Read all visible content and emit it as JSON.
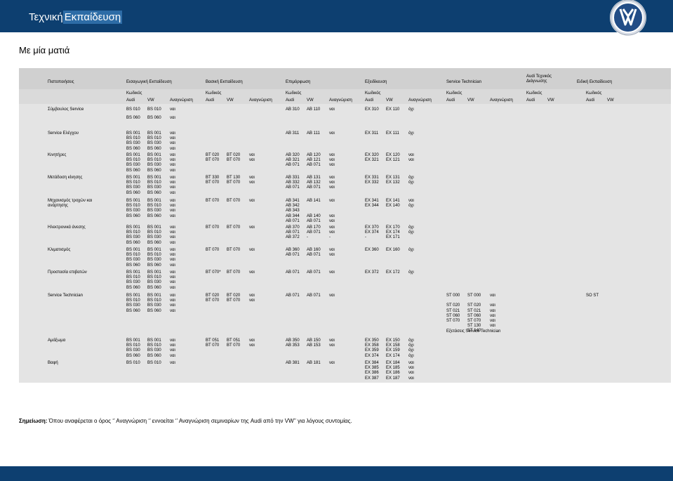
{
  "header": {
    "title_part1": "Τεχνική",
    "title_part2": "Εκπαίδευση",
    "logo": "vw-logo"
  },
  "subtitle": "Με μία ματιά",
  "table": {
    "col_headers": {
      "pistopoiiseis": "Πιστοποιήσεις",
      "eisagogiki": "Εισαγωγική Εκπαίδευση",
      "vasiki": "Βασική Εκπαίδευση",
      "epimorfosi": "Επιμόρφωση",
      "exeidikeusi": "Εξειδίκευση",
      "service_technician": "Service Technician",
      "audi_tech_diag": "Audi Τεχνικός\nΔιάγνωσης",
      "eidiki": "Ειδική Εκπαίδευση"
    },
    "sub_headers": {
      "kodikos": "Κωδικός",
      "audi": "Audi",
      "vw": "VW",
      "anagnorisi": "Αναγνώριση"
    },
    "rows": [
      {
        "label": "Σύμβουλος Service",
        "eis_audi": "BS 010",
        "eis_vw": "BS 010",
        "eis_an": "ναι",
        "vas_audi": "",
        "vas_vw": "",
        "vas_an": "",
        "epi_audi": "AB 310",
        "epi_vw": "AB 110",
        "epi_an": "ναι",
        "exe_audi": "EX 310",
        "exe_vw": "EX 110",
        "exe_an": "όχι"
      },
      {
        "label": "",
        "eis_audi": "BS 060",
        "eis_vw": "BS 060",
        "eis_an": "ναι",
        "vas_audi": "",
        "vas_vw": "",
        "vas_an": "",
        "epi_audi": "",
        "epi_vw": "",
        "epi_an": "",
        "exe_audi": "",
        "exe_vw": "",
        "exe_an": ""
      },
      {
        "label": "Service Ελέγχου",
        "eis_audi": "BS 001\nBS 010\nBS 030\nBS 060",
        "eis_vw": "BS 001\nBS 010\nBS 030\nBS 060",
        "eis_an": "ναι\nναι\nναι\nναι",
        "vas_audi": "",
        "vas_vw": "",
        "vas_an": "",
        "epi_audi": "AB 311",
        "epi_vw": "AB 111",
        "epi_an": "ναι",
        "exe_audi": "EX 311",
        "exe_vw": "EX 111",
        "exe_an": "όχι"
      },
      {
        "label": "Κινητήρες",
        "eis_audi": "BS 001\nBS 010\nBS 030\nBS 060",
        "eis_vw": "BS 001\nBS 010\nBS 030\nBS 060",
        "eis_an": "ναι\nναι\nναι\nναι",
        "vas_audi": "BT 020\nBT 070",
        "vas_vw": "BT 020\nBT 070",
        "vas_an": "ναι\nναι",
        "epi_audi": "AB 320\nAB 321\nAB 071",
        "epi_vw": "AB 120\nAB 121\nAB 071",
        "epi_an": "ναι\nναι\nναι",
        "exe_audi": "EX 320\nEX 321",
        "exe_vw": "EX 120\nEX 121",
        "exe_an": "ναι\nναι"
      },
      {
        "label": "Μετάδοση κίνησης",
        "eis_audi": "BS 001\nBS 010\nBS 030\nBS 060",
        "eis_vw": "BS 001\nBS 010\nBS 030\nBS 060",
        "eis_an": "ναι\nναι\nναι\nναι",
        "vas_audi": "BT 330\nBT 070",
        "vas_vw": "BT 130\nBT 070",
        "vas_an": "ναι\nναι",
        "epi_audi": "AB 331\nAB 332\nAB 071",
        "epi_vw": "AB 131\nAB 132\nAB 071",
        "epi_an": "ναι\nναι\nναι",
        "exe_audi": "EX 331\nEX 332",
        "exe_vw": "EX 131\nEX 132",
        "exe_an": "όχι\nόχι"
      },
      {
        "label": "Μηχανισμός τροχών και\nανάρτησης",
        "eis_audi": "BS 001\nBS 010\nBS 030\nBS 060",
        "eis_vw": "BS 001\nBS 010\nBS 030\nBS 060",
        "eis_an": "ναι\nναι\nναι\nναι",
        "vas_audi": "BT 070",
        "vas_vw": "BT 070",
        "vas_an": "ναι",
        "epi_audi": "AB 341\nAB 342\nAB 343\nAB 344\nAB 071",
        "epi_vw": "AB 141\n\n\nAB 140\nAB 071",
        "epi_an": "ναι\n\n\nναι\nναι",
        "exe_audi": "EX 341\nEX 344",
        "exe_vw": "EX 141\nEX 140",
        "exe_an": "ναι\nόχι"
      },
      {
        "label": "Ηλεκτρονικά άνεσης",
        "eis_audi": "BS 001\nBS 010\nBS 030\nBS 060",
        "eis_vw": "BS 001\nBS 010\nBS 030\nBS 060",
        "eis_an": "ναι\nναι\nναι\nναι",
        "vas_audi": "BT 070",
        "vas_vw": "BT 070",
        "vas_an": "ναι",
        "epi_audi": "AB 370\nAB 071\nAB 372",
        "epi_vw": "AB 170\nAB 071\n-",
        "epi_an": "ναι\nναι\n-",
        "exe_audi": "EX 370\nEX 374\n-",
        "exe_vw": "EX 170\nEX 174\nEX 171",
        "exe_an": "όχι\nόχι"
      },
      {
        "label": "Κλιματισμός",
        "eis_audi": "BS 001\nBS 010\nBS 030\nBS 060",
        "eis_vw": "BS 001\nBS 010\nBS 030\nBS 060",
        "eis_an": "ναι\nναι\nναι\nναι",
        "vas_audi": "BT 070",
        "vas_vw": "BT 070",
        "vas_an": "ναι",
        "epi_audi": "AB 360\nAB 071",
        "epi_vw": "AB 160\nAB 071",
        "epi_an": "ναι\nναι",
        "exe_audi": "EX 360",
        "exe_vw": "EX 160",
        "exe_an": "όχι"
      },
      {
        "label": "Προστασία επιβατών",
        "eis_audi": "BS 001\nBS 010\nBS 030\nBS 060",
        "eis_vw": "BS 001\nBS 010\nBS 030\nBS 060",
        "eis_an": "ναι\nναι\nναι\nναι",
        "vas_audi": "BT 070*",
        "vas_vw": "BT 070",
        "vas_an": "ναι",
        "epi_audi": "AB 071",
        "epi_vw": "AB 071",
        "epi_an": "ναι",
        "exe_audi": "EX 372",
        "exe_vw": "EX 172",
        "exe_an": "όχι"
      },
      {
        "label": "Service Technician",
        "eis_audi": "BS 001\nBS 010\nBS 030\nBS 060",
        "eis_vw": "BS 001\nBS 010\nBS 030\nBS 060",
        "eis_an": "ναι\nναι\nναι\nναι",
        "vas_audi": "BT 020\nBT 070",
        "vas_vw": "BT 020\nBT 070",
        "vas_an": "ναι\nναι",
        "epi_audi": "AB 071",
        "epi_vw": "AB 071",
        "epi_an": "ναι",
        "exe_audi": "",
        "exe_vw": "",
        "exe_an": "",
        "st_audi": "ST 000\n\nST 020\nST 021\nST 060\nST 070",
        "st_vw": "ST 000\n\nST 020\nST 021\nST 060\nST 070\nST 130\nST 140",
        "st_an": "ναι\n\nναι\nναι\nναι\nναι\nναι",
        "st_note": "Εξετάσεις Service Technician",
        "eidiki": "SO ST"
      },
      {
        "label": "Αμάξωμα",
        "eis_audi": "BS 001\nBS 010\nBS 030\nBS 060",
        "eis_vw": "BS 001\nBS 010\nBS 030\nBS 060",
        "eis_an": "ναι\nναι\nναι\nναι",
        "vas_audi": "BT 051\nBT 070",
        "vas_vw": "BT 051\nBT 070",
        "vas_an": "ναι\nναι",
        "epi_audi": "AB 350\nAB 353",
        "epi_vw": "AB 150\nAB 153",
        "epi_an": "ναι\nναι",
        "exe_audi": "EX 350\nEX 358\nEX 359\nEX 374",
        "exe_vw": "EX 150\nEX 158\nEX 159\nEX 174",
        "exe_an": "όχι\nόχι\nόχι\nόχι"
      },
      {
        "label": "Βαφή",
        "eis_audi": "BS 010",
        "eis_vw": "BS 010",
        "eis_an": "ναι",
        "vas_audi": "",
        "vas_vw": "",
        "vas_an": "",
        "epi_audi": "AB 381",
        "epi_vw": "AB 181",
        "epi_an": "ναι",
        "exe_audi": "EX 384\nEX 385\nEX 386\nEX 387",
        "exe_vw": "EX 184\nEX 185\nEX 186\nEX 187",
        "exe_an": "ναι\nναι\nναι\nναι"
      }
    ]
  },
  "note": {
    "label": "Σημείωση:",
    "text": " Όπου αναφέρεται ο όρος ‘’ Αναγνώριση ‘’ εννοείται ‘’ Αναγνώριση σεμιναρίων της Audi από την VW’’ για λόγους συντομίας."
  }
}
